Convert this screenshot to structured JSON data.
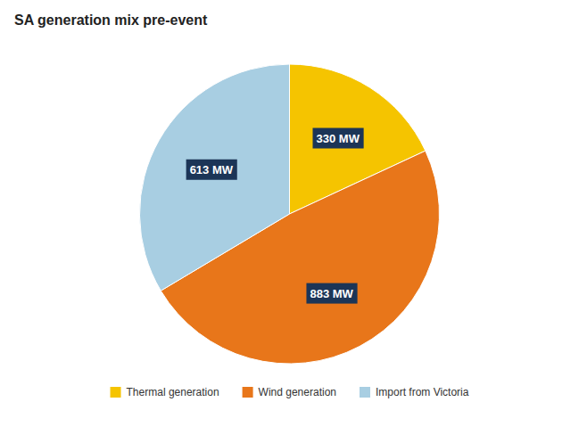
{
  "chart_data": {
    "type": "pie",
    "title": "SA generation mix pre-event",
    "categories": [
      "Thermal generation",
      "Wind generation",
      "Import from Victoria"
    ],
    "values": [
      330,
      883,
      613
    ],
    "value_labels": [
      "330 MW",
      "883 MW",
      "613 MW"
    ],
    "colors": [
      "#F5C400",
      "#E8761A",
      "#A8CEE2"
    ],
    "data_labels": true,
    "legend": "bottom"
  }
}
